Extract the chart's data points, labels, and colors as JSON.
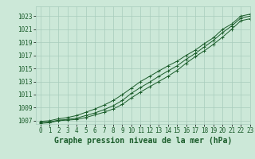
{
  "title": "Graphe pression niveau de la mer (hPa)",
  "bg_color": "#cce8d8",
  "grid_color": "#a8ccbc",
  "line_color": "#1a5c2a",
  "marker_color": "#1a5c2a",
  "x": [
    0,
    1,
    2,
    3,
    4,
    5,
    6,
    7,
    8,
    9,
    10,
    11,
    12,
    13,
    14,
    15,
    16,
    17,
    18,
    19,
    20,
    21,
    22,
    23
  ],
  "y_min": [
    1006.6,
    1006.7,
    1007.0,
    1007.1,
    1007.2,
    1007.5,
    1007.9,
    1008.3,
    1008.8,
    1009.5,
    1010.5,
    1011.4,
    1012.2,
    1013.0,
    1013.8,
    1014.7,
    1015.8,
    1016.8,
    1017.7,
    1018.7,
    1019.8,
    1021.0,
    1022.3,
    1022.6
  ],
  "y_mean": [
    1006.7,
    1006.8,
    1007.1,
    1007.2,
    1007.4,
    1007.8,
    1008.2,
    1008.7,
    1009.3,
    1010.1,
    1011.2,
    1012.1,
    1012.9,
    1013.8,
    1014.6,
    1015.4,
    1016.4,
    1017.3,
    1018.3,
    1019.3,
    1020.5,
    1021.5,
    1022.7,
    1023.0
  ],
  "y_max": [
    1006.9,
    1007.0,
    1007.3,
    1007.5,
    1007.8,
    1008.3,
    1008.8,
    1009.4,
    1010.1,
    1011.0,
    1012.0,
    1013.0,
    1013.8,
    1014.6,
    1015.4,
    1016.1,
    1017.0,
    1017.8,
    1018.8,
    1019.7,
    1021.0,
    1021.8,
    1023.0,
    1023.3
  ],
  "ylim": [
    1006.5,
    1024.5
  ],
  "xlim": [
    -0.5,
    23
  ],
  "yticks": [
    1007,
    1009,
    1011,
    1013,
    1015,
    1017,
    1019,
    1021,
    1023
  ],
  "xticks": [
    0,
    1,
    2,
    3,
    4,
    5,
    6,
    7,
    8,
    9,
    10,
    11,
    12,
    13,
    14,
    15,
    16,
    17,
    18,
    19,
    20,
    21,
    22,
    23
  ],
  "tick_label_color": "#1a5c2a",
  "title_color": "#1a5c2a",
  "title_fontsize": 7.0,
  "tick_fontsize": 5.5
}
